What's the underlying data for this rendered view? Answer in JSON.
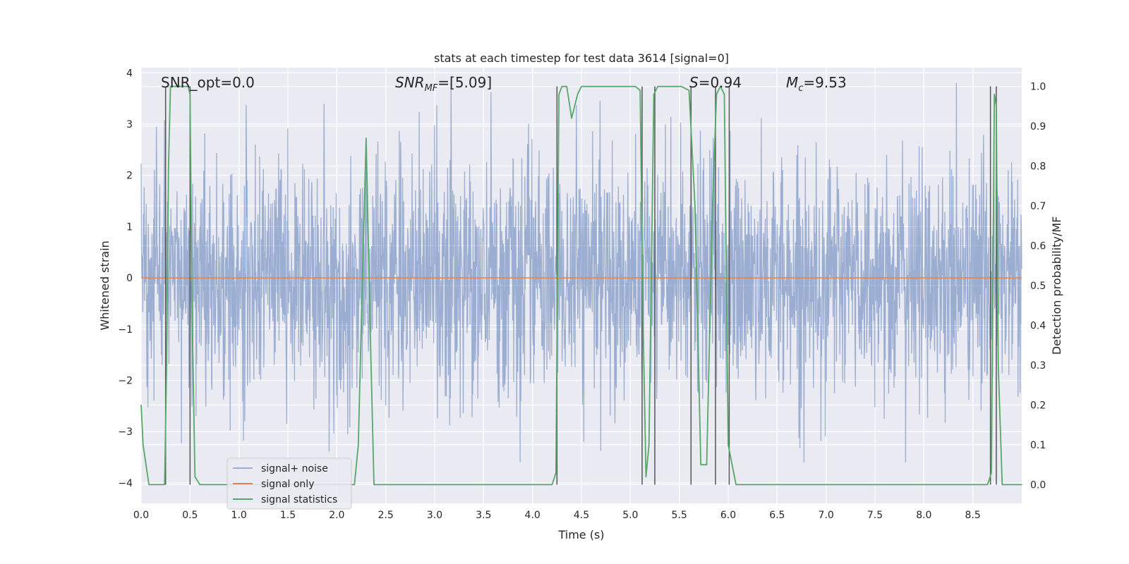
{
  "chart_data": {
    "type": "line",
    "title": "stats at each timestep for test data 3614 [signal=0]",
    "xlabel": "Time (s)",
    "ylabel": "Whitened strain",
    "y2label": "Detection probability/MF",
    "xlim": [
      0.0,
      9.0
    ],
    "ylim": [
      -4.4,
      4.1
    ],
    "y2lim": [
      -0.047,
      1.047
    ],
    "xticks": [
      "0.0",
      "0.5",
      "1.0",
      "1.5",
      "2.0",
      "2.5",
      "3.0",
      "3.5",
      "4.0",
      "4.5",
      "5.0",
      "5.5",
      "6.0",
      "6.5",
      "7.0",
      "7.5",
      "8.0",
      "8.5"
    ],
    "yticks": [
      "4",
      "3",
      "2",
      "1",
      "0",
      "−1",
      "−2",
      "−3",
      "−4"
    ],
    "y2ticks": [
      "1.0",
      "0.9",
      "0.8",
      "0.7",
      "0.6",
      "0.5",
      "0.4",
      "0.3",
      "0.2",
      "0.1",
      "0.0"
    ],
    "grid": true,
    "annotations": {
      "snr_opt": "SNR_opt=0.0",
      "snr_mf": "SNR",
      "snr_mf_sub": "MF",
      "snr_mf_value": "=[5.09]",
      "s_label": "S",
      "s_value": "=0.94",
      "mc_label": "M",
      "mc_sub": "c",
      "mc_value": "=9.53"
    },
    "series": [
      {
        "name": "signal+ noise",
        "color": "#4C72B0",
        "kind": "noise",
        "typical_range": [
          -1.8,
          1.8
        ],
        "extreme_range": [
          -3.6,
          3.8
        ]
      },
      {
        "name": "signal only",
        "color": "#DD8452",
        "kind": "constant",
        "value": 0.0
      },
      {
        "name": "signal statistics",
        "color": "#55A868",
        "kind": "probability",
        "x": [
          0.0,
          0.02,
          0.05,
          0.08,
          0.15,
          0.2,
          0.24,
          0.26,
          0.28,
          0.3,
          0.48,
          0.5,
          0.52,
          0.55,
          0.6,
          2.18,
          2.22,
          2.27,
          2.3,
          2.34,
          2.38,
          4.2,
          4.24,
          4.27,
          4.3,
          4.35,
          4.4,
          4.46,
          4.5,
          5.05,
          5.1,
          5.13,
          5.16,
          5.19,
          5.24,
          5.28,
          5.52,
          5.6,
          5.66,
          5.72,
          5.78,
          5.84,
          5.88,
          5.92,
          5.96,
          6.0,
          6.08,
          6.12,
          8.65,
          8.69,
          8.72,
          8.74,
          8.76,
          8.8,
          8.86,
          9.0
        ],
        "y": [
          0.2,
          0.1,
          0.05,
          0.0,
          0.0,
          0.0,
          0.0,
          0.3,
          0.8,
          1.0,
          1.0,
          0.98,
          0.45,
          0.02,
          0.0,
          0.0,
          0.1,
          0.6,
          0.87,
          0.4,
          0.0,
          0.0,
          0.03,
          0.98,
          1.0,
          1.0,
          0.92,
          0.98,
          1.0,
          1.0,
          0.99,
          0.4,
          0.02,
          0.1,
          0.98,
          1.0,
          1.0,
          0.99,
          0.7,
          0.05,
          0.05,
          0.7,
          0.98,
          1.0,
          0.98,
          0.1,
          0.0,
          0.0,
          0.0,
          0.03,
          0.98,
          0.95,
          0.3,
          0.0,
          0.0,
          0.0
        ]
      },
      {
        "name": "detection markers",
        "color": "#555555",
        "kind": "vlines",
        "x": [
          0.25,
          0.5,
          4.25,
          5.12,
          5.25,
          5.62,
          5.87,
          6.01,
          8.68,
          8.74
        ],
        "y_top": 1.0,
        "y_bottom": 0.0
      }
    ],
    "legend": {
      "position": "lower-left",
      "entries": [
        "signal+ noise",
        "signal only",
        "signal statistics"
      ]
    }
  }
}
